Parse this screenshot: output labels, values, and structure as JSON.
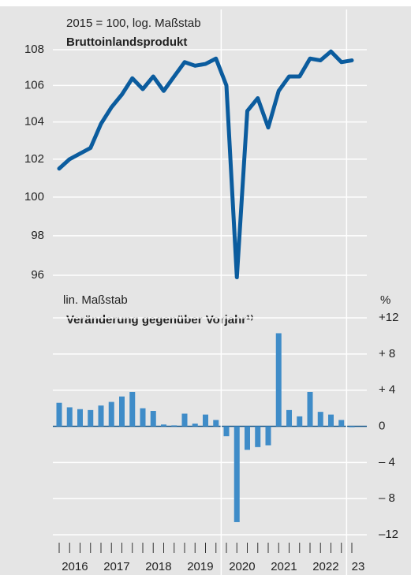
{
  "chart_data": [
    {
      "type": "line",
      "subtitle": "2015 = 100, log. Maßstab",
      "title": "Bruttoinlandsprodukt",
      "log_scale": true,
      "color": "#0b5c9e",
      "grid": true,
      "ylim": [
        95,
        108.6
      ],
      "yticks": [
        96,
        98,
        100,
        102,
        104,
        106,
        108
      ],
      "values": [
        101.5,
        102.0,
        102.3,
        102.6,
        103.9,
        104.8,
        105.5,
        106.4,
        105.8,
        106.5,
        105.7,
        106.5,
        107.3,
        107.1,
        107.2,
        107.5,
        106.0,
        95.9,
        104.6,
        105.3,
        103.7,
        105.7,
        106.5,
        106.5,
        107.5,
        107.4,
        107.9,
        107.3,
        107.4
      ]
    },
    {
      "type": "bar",
      "subtitle": "lin. Maßstab",
      "title": "Veränderung gegenüber Vorjahr¹⁾",
      "unit": "%",
      "color": "#3f8cc8",
      "grid": true,
      "ylim": [
        -12,
        12
      ],
      "yticks": [
        {
          "value": 12,
          "label": "+12"
        },
        {
          "value": 8,
          "label": "+ 8"
        },
        {
          "value": 4,
          "label": "+ 4"
        },
        0,
        {
          "value": -4,
          "label": "– 4"
        },
        {
          "value": -8,
          "label": "– 8"
        },
        {
          "value": -12,
          "label": "–12"
        }
      ],
      "values": [
        2.6,
        2.1,
        1.9,
        1.8,
        2.3,
        2.7,
        3.3,
        3.8,
        2.0,
        1.7,
        0.2,
        0.1,
        1.4,
        0.3,
        1.3,
        0.7,
        -1.1,
        -10.6,
        -2.6,
        -2.3,
        -2.1,
        10.3,
        1.8,
        1.1,
        3.8,
        1.6,
        1.3,
        0.7,
        -0.1
      ],
      "x_labels": [
        "2016",
        "2017",
        "2018",
        "2019",
        "2020",
        "2021",
        "2022",
        "23"
      ]
    }
  ]
}
